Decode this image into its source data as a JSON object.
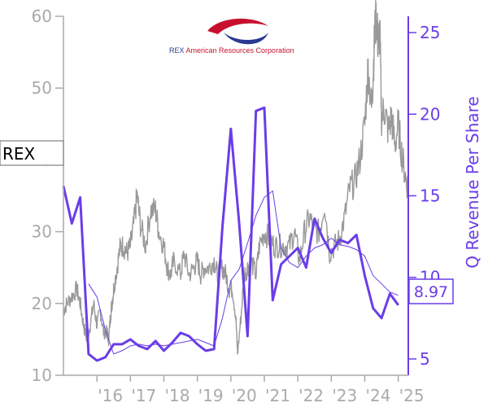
{
  "ticker": "REX",
  "company_name": {
    "first": "REX",
    "rest": " American Resources Corporation"
  },
  "last_value_label": "8.97",
  "colors": {
    "price": "#999999",
    "revenue": "#6a3de8",
    "axis_left": "#aaaaaa",
    "axis_right": "#6a3de8",
    "logo_red": "#c8102e",
    "logo_blue": "#2b3990"
  },
  "chart_data": {
    "type": "line",
    "title": "",
    "left_axis": {
      "ylabel": "",
      "ylim": [
        10,
        60
      ],
      "ticks": [
        10,
        20,
        30,
        40,
        50,
        60
      ]
    },
    "right_axis": {
      "ylabel": "Q Revenue Per Share",
      "ylim": [
        4,
        26
      ],
      "ticks": [
        5,
        10,
        15,
        20,
        25
      ]
    },
    "x_axis": {
      "xlim": [
        2015.0,
        2025.3
      ],
      "ticks": [
        2016,
        2017,
        2018,
        2019,
        2020,
        2021,
        2022,
        2023,
        2024,
        2025
      ],
      "tick_labels": [
        "'16",
        "'17",
        "'18",
        "'19",
        "'20",
        "'21",
        "'22",
        "'23",
        "'24",
        "'25"
      ]
    },
    "series": [
      {
        "axis": "left",
        "style": "noisy-line",
        "points": [
          [
            2015.0,
            19
          ],
          [
            2015.1,
            20
          ],
          [
            2015.25,
            21
          ],
          [
            2015.4,
            22
          ],
          [
            2015.5,
            20
          ],
          [
            2015.6,
            17
          ],
          [
            2015.7,
            15
          ],
          [
            2015.8,
            17
          ],
          [
            2015.9,
            20
          ],
          [
            2016.0,
            17
          ],
          [
            2016.1,
            19
          ],
          [
            2016.2,
            16
          ],
          [
            2016.3,
            16
          ],
          [
            2016.35,
            15
          ],
          [
            2016.4,
            18
          ],
          [
            2016.45,
            20
          ],
          [
            2016.5,
            22
          ],
          [
            2016.6,
            25
          ],
          [
            2016.7,
            28
          ],
          [
            2016.8,
            28
          ],
          [
            2016.9,
            27
          ],
          [
            2017.0,
            28
          ],
          [
            2017.1,
            31
          ],
          [
            2017.2,
            35
          ],
          [
            2017.3,
            31
          ],
          [
            2017.45,
            28
          ],
          [
            2017.6,
            33
          ],
          [
            2017.75,
            33
          ],
          [
            2017.85,
            30
          ],
          [
            2018.0,
            28
          ],
          [
            2018.1,
            25
          ],
          [
            2018.2,
            24
          ],
          [
            2018.3,
            26
          ],
          [
            2018.5,
            24
          ],
          [
            2018.6,
            27
          ],
          [
            2018.75,
            24
          ],
          [
            2018.9,
            25
          ],
          [
            2019.0,
            26
          ],
          [
            2019.1,
            24
          ],
          [
            2019.2,
            25
          ],
          [
            2019.35,
            25
          ],
          [
            2019.5,
            26
          ],
          [
            2019.6,
            24
          ],
          [
            2019.75,
            25
          ],
          [
            2019.85,
            24
          ],
          [
            2019.95,
            22
          ],
          [
            2020.05,
            22
          ],
          [
            2020.15,
            18
          ],
          [
            2020.2,
            13
          ],
          [
            2020.3,
            18
          ],
          [
            2020.4,
            24
          ],
          [
            2020.5,
            25
          ],
          [
            2020.6,
            26
          ],
          [
            2020.75,
            24
          ],
          [
            2020.85,
            28
          ],
          [
            2021.0,
            30
          ],
          [
            2021.15,
            29
          ],
          [
            2021.3,
            28
          ],
          [
            2021.45,
            28
          ],
          [
            2021.6,
            28
          ],
          [
            2021.75,
            28
          ],
          [
            2021.9,
            30
          ],
          [
            2022.05,
            26
          ],
          [
            2022.2,
            30
          ],
          [
            2022.35,
            32
          ],
          [
            2022.5,
            30
          ],
          [
            2022.65,
            30
          ],
          [
            2022.8,
            34
          ],
          [
            2022.95,
            27
          ],
          [
            2023.1,
            28
          ],
          [
            2023.25,
            29
          ],
          [
            2023.4,
            32
          ],
          [
            2023.55,
            36
          ],
          [
            2023.7,
            37
          ],
          [
            2023.85,
            40
          ],
          [
            2024.0,
            45
          ],
          [
            2024.1,
            53
          ],
          [
            2024.2,
            47
          ],
          [
            2024.25,
            52
          ],
          [
            2024.3,
            58
          ],
          [
            2024.35,
            60
          ],
          [
            2024.4,
            56
          ],
          [
            2024.45,
            58
          ],
          [
            2024.5,
            46
          ],
          [
            2024.6,
            47
          ],
          [
            2024.7,
            44
          ],
          [
            2024.8,
            46
          ],
          [
            2024.9,
            42
          ],
          [
            2025.0,
            45
          ],
          [
            2025.1,
            41
          ],
          [
            2025.2,
            38
          ],
          [
            2025.3,
            36
          ]
        ]
      },
      {
        "axis": "right",
        "style": "thick",
        "points": [
          [
            2015.0,
            15.6
          ],
          [
            2015.25,
            13.3
          ],
          [
            2015.5,
            14.9
          ],
          [
            2015.75,
            5.3
          ],
          [
            2016.0,
            4.9
          ],
          [
            2016.25,
            5.1
          ],
          [
            2016.5,
            5.9
          ],
          [
            2016.75,
            5.9
          ],
          [
            2017.0,
            6.2
          ],
          [
            2017.25,
            5.8
          ],
          [
            2017.5,
            5.6
          ],
          [
            2017.75,
            6.1
          ],
          [
            2018.0,
            5.5
          ],
          [
            2018.25,
            6.0
          ],
          [
            2018.5,
            6.6
          ],
          [
            2018.75,
            6.4
          ],
          [
            2019.0,
            5.9
          ],
          [
            2019.25,
            5.5
          ],
          [
            2019.5,
            5.6
          ],
          [
            2019.75,
            13.1
          ],
          [
            2020.0,
            19.1
          ],
          [
            2020.25,
            13.3
          ],
          [
            2020.5,
            6.4
          ],
          [
            2020.75,
            20.2
          ],
          [
            2021.0,
            20.4
          ],
          [
            2021.25,
            8.6
          ],
          [
            2021.5,
            10.8
          ],
          [
            2021.75,
            11.3
          ],
          [
            2022.0,
            11.8
          ],
          [
            2022.25,
            10.6
          ],
          [
            2022.5,
            13.6
          ],
          [
            2022.75,
            12.4
          ],
          [
            2023.0,
            11.5
          ],
          [
            2023.25,
            12.3
          ],
          [
            2023.5,
            12.1
          ],
          [
            2023.75,
            12.6
          ],
          [
            2024.0,
            10.1
          ],
          [
            2024.25,
            8.1
          ],
          [
            2024.5,
            7.5
          ],
          [
            2024.75,
            9.0
          ],
          [
            2025.0,
            8.3
          ]
        ]
      },
      {
        "axis": "right",
        "style": "thin",
        "points": [
          [
            2015.75,
            9.6
          ],
          [
            2016.0,
            8.8
          ],
          [
            2016.25,
            6.8
          ],
          [
            2016.5,
            5.3
          ],
          [
            2016.75,
            5.5
          ],
          [
            2017.0,
            5.8
          ],
          [
            2017.25,
            5.9
          ],
          [
            2017.5,
            5.8
          ],
          [
            2017.75,
            5.9
          ],
          [
            2018.0,
            5.8
          ],
          [
            2018.25,
            5.9
          ],
          [
            2018.5,
            6.0
          ],
          [
            2018.75,
            6.1
          ],
          [
            2019.0,
            6.2
          ],
          [
            2019.25,
            6.0
          ],
          [
            2019.5,
            5.8
          ],
          [
            2019.75,
            7.5
          ],
          [
            2020.0,
            9.8
          ],
          [
            2020.25,
            10.5
          ],
          [
            2020.5,
            12.1
          ],
          [
            2020.75,
            13.8
          ],
          [
            2021.0,
            14.9
          ],
          [
            2021.25,
            15.3
          ],
          [
            2021.5,
            11.8
          ],
          [
            2021.75,
            10.9
          ],
          [
            2022.0,
            10.6
          ],
          [
            2022.25,
            11.3
          ],
          [
            2022.5,
            11.8
          ],
          [
            2022.75,
            12.0
          ],
          [
            2023.0,
            12.4
          ],
          [
            2023.25,
            12.0
          ],
          [
            2023.5,
            11.9
          ],
          [
            2023.75,
            11.7
          ],
          [
            2024.0,
            11.3
          ],
          [
            2024.25,
            10.1
          ],
          [
            2024.5,
            9.6
          ],
          [
            2024.75,
            9.1
          ],
          [
            2025.0,
            8.9
          ]
        ]
      }
    ]
  }
}
